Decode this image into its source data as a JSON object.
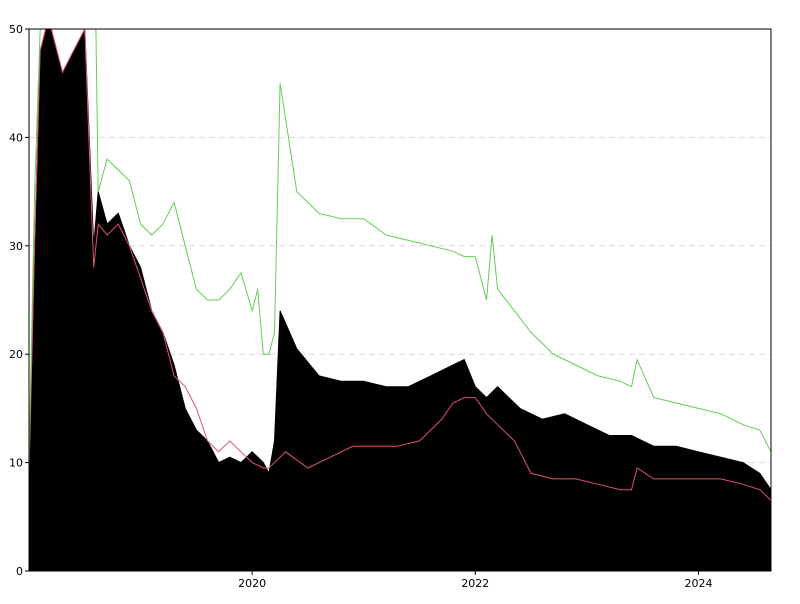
{
  "chart_data": {
    "type": "area",
    "title": "",
    "xlabel": "",
    "ylabel": "",
    "xlim": [
      2018.0,
      2024.65
    ],
    "ylim": [
      0,
      50
    ],
    "x_ticks": [
      {
        "value": 2020,
        "label": "2020"
      },
      {
        "value": 2022,
        "label": "2022"
      },
      {
        "value": 2024,
        "label": "2024"
      }
    ],
    "y_ticks": [
      {
        "value": 0,
        "label": "0"
      },
      {
        "value": 10,
        "label": "10"
      },
      {
        "value": 20,
        "label": "20"
      },
      {
        "value": 30,
        "label": "30"
      },
      {
        "value": 40,
        "label": "40"
      },
      {
        "value": 50,
        "label": "50"
      }
    ],
    "grid": {
      "horizontal": true,
      "style": "dashed"
    },
    "colors": {
      "area": "#000000",
      "line_red": "#df536b",
      "line_green": "#61d04f",
      "grid": "#d9d9d9"
    },
    "series": [
      {
        "style": "area",
        "color": "#000000",
        "x": [
          2018.0,
          2018.05,
          2018.1,
          2018.15,
          2018.2,
          2018.3,
          2018.4,
          2018.5,
          2018.58,
          2018.62,
          2018.7,
          2018.8,
          2018.9,
          2019.0,
          2019.1,
          2019.2,
          2019.3,
          2019.4,
          2019.5,
          2019.6,
          2019.7,
          2019.8,
          2019.9,
          2020.0,
          2020.1,
          2020.15,
          2020.2,
          2020.25,
          2020.4,
          2020.6,
          2020.8,
          2021.0,
          2021.2,
          2021.4,
          2021.6,
          2021.8,
          2021.9,
          2022.0,
          2022.1,
          2022.2,
          2022.4,
          2022.6,
          2022.8,
          2023.0,
          2023.2,
          2023.4,
          2023.6,
          2023.8,
          2024.0,
          2024.2,
          2024.4,
          2024.55,
          2024.65
        ],
        "y": [
          10,
          30,
          48,
          50,
          50,
          46,
          48,
          50,
          30,
          35,
          32,
          33,
          30,
          28,
          24,
          22,
          19,
          15,
          13,
          12,
          10,
          10.5,
          10,
          11,
          10,
          9,
          12,
          24,
          20.5,
          18,
          17.5,
          17.5,
          17,
          17,
          18,
          19,
          19.5,
          17,
          16,
          17,
          15,
          14,
          14.5,
          13.5,
          12.5,
          12.5,
          11.5,
          11.5,
          11,
          10.5,
          10,
          9,
          7.5
        ]
      },
      {
        "style": "line",
        "color": "#df536b",
        "x": [
          2018.0,
          2018.05,
          2018.1,
          2018.15,
          2018.2,
          2018.3,
          2018.4,
          2018.5,
          2018.58,
          2018.62,
          2018.7,
          2018.8,
          2018.9,
          2019.0,
          2019.1,
          2019.2,
          2019.3,
          2019.4,
          2019.5,
          2019.6,
          2019.7,
          2019.8,
          2019.9,
          2020.0,
          2020.1,
          2020.15,
          2020.2,
          2020.3,
          2020.5,
          2020.7,
          2020.9,
          2021.1,
          2021.3,
          2021.5,
          2021.7,
          2021.8,
          2021.9,
          2022.0,
          2022.1,
          2022.2,
          2022.35,
          2022.5,
          2022.7,
          2022.9,
          2023.1,
          2023.3,
          2023.4,
          2023.45,
          2023.6,
          2023.8,
          2024.0,
          2024.2,
          2024.4,
          2024.55,
          2024.65
        ],
        "y": [
          9,
          30,
          48,
          50,
          50,
          46,
          48,
          50,
          28,
          32,
          31,
          32,
          30,
          27,
          24,
          22,
          18,
          17,
          15,
          12,
          11,
          12,
          11,
          10,
          9.5,
          9.5,
          10,
          11,
          9.5,
          10.5,
          11.5,
          11.5,
          11.5,
          12,
          14,
          15.5,
          16,
          16,
          14.5,
          13.5,
          12,
          9,
          8.5,
          8.5,
          8,
          7.5,
          7.5,
          9.5,
          8.5,
          8.5,
          8.5,
          8.5,
          8,
          7.5,
          6.5
        ]
      },
      {
        "style": "line",
        "color": "#61d04f",
        "x": [
          2018.0,
          2018.05,
          2018.1,
          2018.15,
          2018.2,
          2018.4,
          2018.6,
          2018.62,
          2018.7,
          2018.8,
          2018.9,
          2019.0,
          2019.1,
          2019.2,
          2019.3,
          2019.4,
          2019.5,
          2019.6,
          2019.7,
          2019.8,
          2019.9,
          2020.0,
          2020.05,
          2020.1,
          2020.15,
          2020.2,
          2020.25,
          2020.4,
          2020.6,
          2020.8,
          2021.0,
          2021.2,
          2021.4,
          2021.6,
          2021.8,
          2021.9,
          2022.0,
          2022.1,
          2022.15,
          2022.2,
          2022.35,
          2022.5,
          2022.7,
          2022.9,
          2023.1,
          2023.3,
          2023.4,
          2023.45,
          2023.6,
          2023.8,
          2024.0,
          2024.2,
          2024.4,
          2024.55,
          2024.65
        ],
        "y": [
          10,
          35,
          50,
          50,
          50,
          50,
          50,
          35,
          38,
          37,
          36,
          32,
          31,
          32,
          34,
          30,
          26,
          25,
          25,
          26,
          27.5,
          24,
          26,
          20,
          20,
          22,
          45,
          35,
          33,
          32.5,
          32.5,
          31,
          30.5,
          30,
          29.5,
          29,
          29,
          25,
          31,
          26,
          24,
          22,
          20,
          19,
          18,
          17.5,
          17,
          19.5,
          16,
          15.5,
          15,
          14.5,
          13.5,
          13,
          11
        ]
      }
    ]
  }
}
